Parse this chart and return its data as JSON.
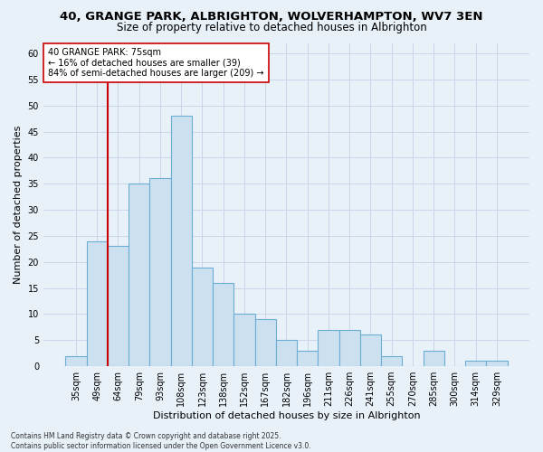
{
  "title_line1": "40, GRANGE PARK, ALBRIGHTON, WOLVERHAMPTON, WV7 3EN",
  "title_line2": "Size of property relative to detached houses in Albrighton",
  "xlabel": "Distribution of detached houses by size in Albrighton",
  "ylabel": "Number of detached properties",
  "categories": [
    "35sqm",
    "49sqm",
    "64sqm",
    "79sqm",
    "93sqm",
    "108sqm",
    "123sqm",
    "138sqm",
    "152sqm",
    "167sqm",
    "182sqm",
    "196sqm",
    "211sqm",
    "226sqm",
    "241sqm",
    "255sqm",
    "270sqm",
    "285sqm",
    "300sqm",
    "314sqm",
    "329sqm"
  ],
  "values": [
    2,
    24,
    23,
    35,
    36,
    48,
    19,
    16,
    10,
    9,
    5,
    3,
    7,
    7,
    6,
    2,
    0,
    3,
    0,
    1,
    1
  ],
  "bar_color": "#cce0f0",
  "bar_edge_color": "#6aaed6",
  "vline_x": 2.0,
  "vline_color": "#cc0000",
  "annotation_text": "40 GRANGE PARK: 75sqm\n← 16% of detached houses are smaller (39)\n84% of semi-detached houses are larger (209) →",
  "annotation_box_color": "#ffffff",
  "annotation_box_edge": "#cc0000",
  "ylim": [
    0,
    62
  ],
  "yticks": [
    0,
    5,
    10,
    15,
    20,
    25,
    30,
    35,
    40,
    45,
    50,
    55,
    60
  ],
  "grid_color": "#c8d8e8",
  "background_color": "#e8f0f8",
  "footer_text": "Contains HM Land Registry data © Crown copyright and database right 2025.\nContains public sector information licensed under the Open Government Licence v3.0.",
  "title_fontsize": 9.5,
  "subtitle_fontsize": 8.5,
  "label_fontsize": 8,
  "tick_fontsize": 7,
  "annotation_fontsize": 7,
  "footer_fontsize": 5.5
}
